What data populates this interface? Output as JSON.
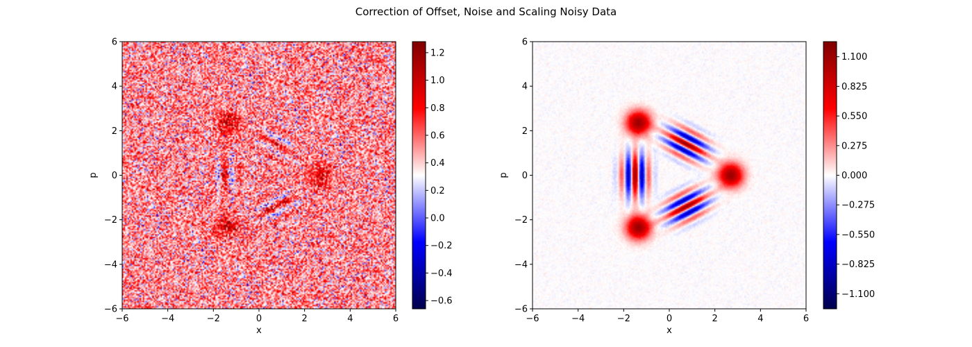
{
  "figure": {
    "title": "Correction of Offset, Noise and Scaling Noisy Data"
  },
  "chart_data": [
    {
      "type": "heatmap",
      "title": "",
      "xlabel": "x",
      "ylabel": "p",
      "xlim": [
        -6,
        6
      ],
      "ylim": [
        -6,
        6
      ],
      "xticks": [
        "−6",
        "−4",
        "−2",
        "0",
        "2",
        "4",
        "6"
      ],
      "yticks": [
        "−6",
        "−4",
        "−2",
        "0",
        "2",
        "4",
        "6"
      ],
      "colormap": [
        "#00004c",
        "#0000ff",
        "#ffffff",
        "#ff0000",
        "#7f0000"
      ],
      "colorbar": {
        "range": [
          -0.66,
          1.28
        ],
        "ticks": [
          -0.6,
          -0.4,
          -0.2,
          0.0,
          0.2,
          0.4,
          0.6,
          0.8,
          1.0,
          1.2
        ],
        "tick_labels": [
          "−0.6",
          "−0.4",
          "−0.2",
          "0.0",
          "0.2",
          "0.4",
          "0.6",
          "0.8",
          "1.0",
          "1.2"
        ]
      },
      "features": {
        "background_level": 0.5,
        "blobs": [
          {
            "x": 2.7,
            "p": 0.0,
            "value": 0.9
          },
          {
            "x": -1.35,
            "p": 2.35,
            "value": 0.9
          },
          {
            "x": -1.35,
            "p": -2.35,
            "value": 0.9
          }
        ],
        "interference_fringes": [
          {
            "x": -1.5,
            "p": 0.0,
            "value_range": [
              -0.2,
              1.0
            ]
          },
          {
            "x": 0.75,
            "p": 1.4,
            "value_range": [
              -0.2,
              1.0
            ]
          },
          {
            "x": 0.75,
            "p": -1.4,
            "value_range": [
              -0.2,
              1.0
            ]
          }
        ]
      }
    },
    {
      "type": "heatmap",
      "title": "",
      "xlabel": "x",
      "ylabel": "p",
      "xlim": [
        -6,
        6
      ],
      "ylim": [
        -6,
        6
      ],
      "xticks": [
        "−6",
        "−4",
        "−2",
        "0",
        "2",
        "4",
        "6"
      ],
      "yticks": [
        "−6",
        "−4",
        "−2",
        "0",
        "2",
        "4",
        "6"
      ],
      "colormap": [
        "#00004c",
        "#0000ff",
        "#ffffff",
        "#ff0000",
        "#7f0000"
      ],
      "colorbar": {
        "range": [
          -1.24,
          1.24
        ],
        "ticks": [
          -1.1,
          -0.825,
          -0.55,
          -0.275,
          0.0,
          0.275,
          0.55,
          0.825,
          1.1
        ],
        "tick_labels": [
          "−1.100",
          "−0.825",
          "−0.550",
          "−0.275",
          "0.000",
          "0.275",
          "0.550",
          "0.825",
          "1.100"
        ]
      },
      "features": {
        "background_level": 0.0,
        "blobs": [
          {
            "x": 2.7,
            "p": 0.0,
            "value": 1.1
          },
          {
            "x": -1.35,
            "p": 2.35,
            "value": 1.1
          },
          {
            "x": -1.35,
            "p": -2.35,
            "value": 1.1
          }
        ],
        "interference_fringes": [
          {
            "x": -1.5,
            "p": 0.0,
            "value_range": [
              -1.1,
              1.1
            ]
          },
          {
            "x": 0.75,
            "p": 1.4,
            "value_range": [
              -1.1,
              1.1
            ]
          },
          {
            "x": 0.75,
            "p": -1.4,
            "value_range": [
              -1.1,
              1.1
            ]
          }
        ]
      }
    }
  ]
}
